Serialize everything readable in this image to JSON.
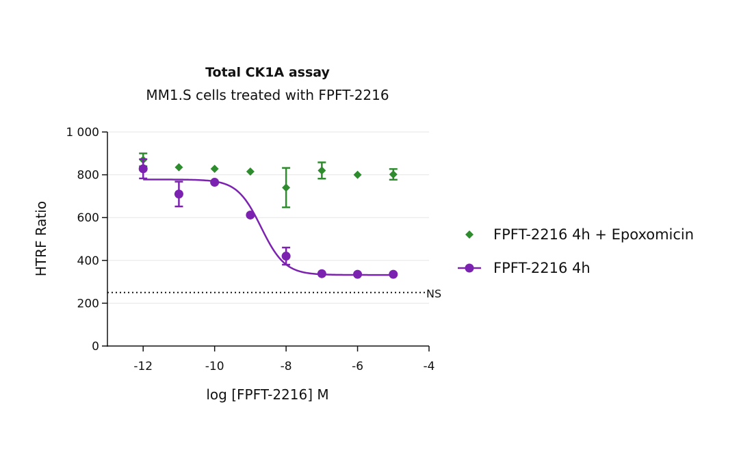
{
  "chart_data": {
    "type": "scatter",
    "title": "Total CK1A assay",
    "subtitle": "MM1.S cells treated with FPFT-2216",
    "xlabel": "log [FPFT-2216] M",
    "ylabel": "HTRF Ratio",
    "xlim": [
      -13,
      -4
    ],
    "ylim": [
      0,
      1000
    ],
    "xticks": [
      -12,
      -10,
      -8,
      -6,
      -4
    ],
    "xtick_labels": [
      "-12",
      "-10",
      "-8",
      "-6",
      "-4"
    ],
    "yticks": [
      0,
      200,
      400,
      600,
      800,
      1000
    ],
    "ytick_labels": [
      "0",
      "200",
      "400",
      "600",
      "800",
      "1 000"
    ],
    "grid": "horizontal",
    "legend_position": "right",
    "series": [
      {
        "name": "FPFT-2216 4h + Epoxomicin",
        "color": "#2e8b2e",
        "marker": "diamond",
        "x": [
          -12,
          -11,
          -10,
          -9,
          -8,
          -7,
          -6,
          -5
        ],
        "y": [
          870,
          835,
          828,
          815,
          740,
          820,
          800,
          802
        ],
        "err": [
          30,
          0,
          0,
          0,
          92,
          38,
          0,
          25
        ]
      },
      {
        "name": "FPFT-2216 4h",
        "color": "#7b22b0",
        "marker": "circle",
        "x": [
          -12,
          -11,
          -10,
          -9,
          -8,
          -7,
          -6,
          -5
        ],
        "y": [
          828,
          710,
          765,
          612,
          420,
          338,
          335,
          335
        ],
        "err": [
          45,
          58,
          0,
          0,
          40,
          0,
          0,
          0
        ],
        "fit": {
          "type": "sigmoid",
          "top": 778,
          "bottom": 332,
          "logIC50": -8.7,
          "hill": 1.3
        }
      }
    ],
    "reference_line": {
      "y": 250,
      "label": "NS",
      "style": "dotted"
    }
  }
}
